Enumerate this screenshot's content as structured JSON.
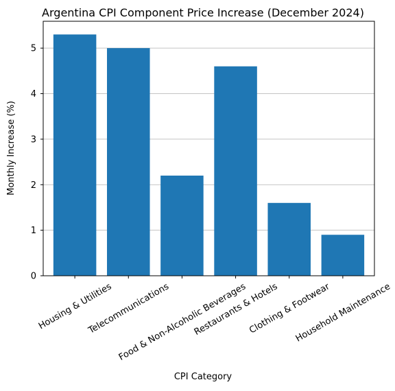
{
  "chart_data": {
    "type": "bar",
    "title": "Argentina CPI Component Price Increase (December 2024)",
    "x_label": "CPI Category",
    "y_label": "Monthly Increase (%)",
    "categories": [
      "Housing & Utilities",
      "Telecommunications",
      "Food & Non-Alcoholic Beverages",
      "Restaurants & Hotels",
      "Clothing & Footwear",
      "Household Maintenance"
    ],
    "values": [
      5.3,
      5.0,
      2.2,
      4.6,
      1.6,
      0.9
    ],
    "color": "#1f77b4",
    "ylim": [
      0,
      5.59
    ],
    "yticks": [
      0,
      1,
      2,
      3,
      4,
      5
    ],
    "grid": true
  }
}
